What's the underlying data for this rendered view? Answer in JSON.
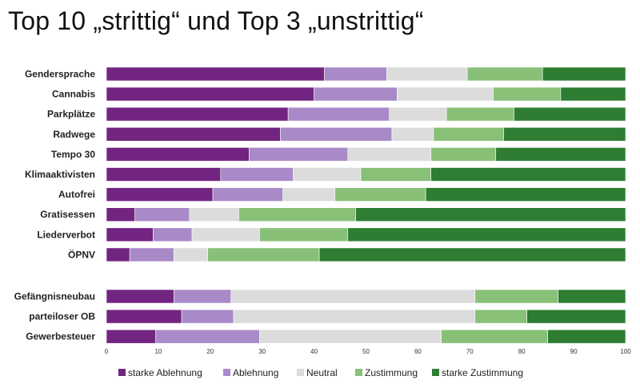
{
  "chart_data": {
    "type": "bar",
    "orientation": "horizontal",
    "stacked": true,
    "title": "Top 10 „strittig“ und Top 3 „unstrittig“",
    "xlim": [
      0,
      100
    ],
    "xticks": [
      0,
      10,
      20,
      30,
      40,
      50,
      60,
      70,
      80,
      90,
      100
    ],
    "grid": false,
    "legend_position": "bottom",
    "groups": [
      {
        "categories": [
          "Gendersprache",
          "Cannabis",
          "Parkplätze",
          "Radwege",
          "Tempo 30",
          "Klimaaktivisten",
          "Autofrei",
          "Gratisessen",
          "Liederverbot",
          "ÖPNV"
        ]
      },
      {
        "categories": [
          "Gefängnisneubau",
          "parteiloser OB",
          "Gewerbesteuer"
        ]
      }
    ],
    "categories": [
      "Gendersprache",
      "Cannabis",
      "Parkplätze",
      "Radwege",
      "Tempo 30",
      "Klimaaktivisten",
      "Autofrei",
      "Gratisessen",
      "Liederverbot",
      "ÖPNV",
      "Gefängnisneubau",
      "parteiloser OB",
      "Gewerbesteuer"
    ],
    "series": [
      {
        "name": "starke Ablehnung",
        "color": "#722580",
        "values": [
          42,
          40,
          35,
          33.5,
          27.5,
          22,
          20.5,
          5.5,
          9,
          4.5,
          13,
          14.5,
          9.5
        ]
      },
      {
        "name": "Ablehnung",
        "color": "#a98ac8",
        "values": [
          12,
          16,
          19.5,
          21.5,
          19,
          14,
          13.5,
          10.5,
          7.5,
          8.5,
          11,
          10,
          20
        ]
      },
      {
        "name": "Neutral",
        "color": "#dcdcdc",
        "values": [
          15.5,
          18.5,
          11,
          8,
          16,
          13,
          10,
          9.5,
          13,
          6.5,
          47,
          46.5,
          35
        ]
      },
      {
        "name": "Zustimmung",
        "color": "#88c078",
        "values": [
          14.5,
          13,
          13,
          13.5,
          12.5,
          13.5,
          17.5,
          22.5,
          17,
          21.5,
          16,
          10,
          20.5
        ]
      },
      {
        "name": "starke Zustimmung",
        "color": "#2e7d32",
        "values": [
          16,
          12.5,
          21.5,
          23.5,
          25,
          37.5,
          38.5,
          52,
          53.5,
          59,
          13,
          19,
          15
        ]
      }
    ]
  }
}
